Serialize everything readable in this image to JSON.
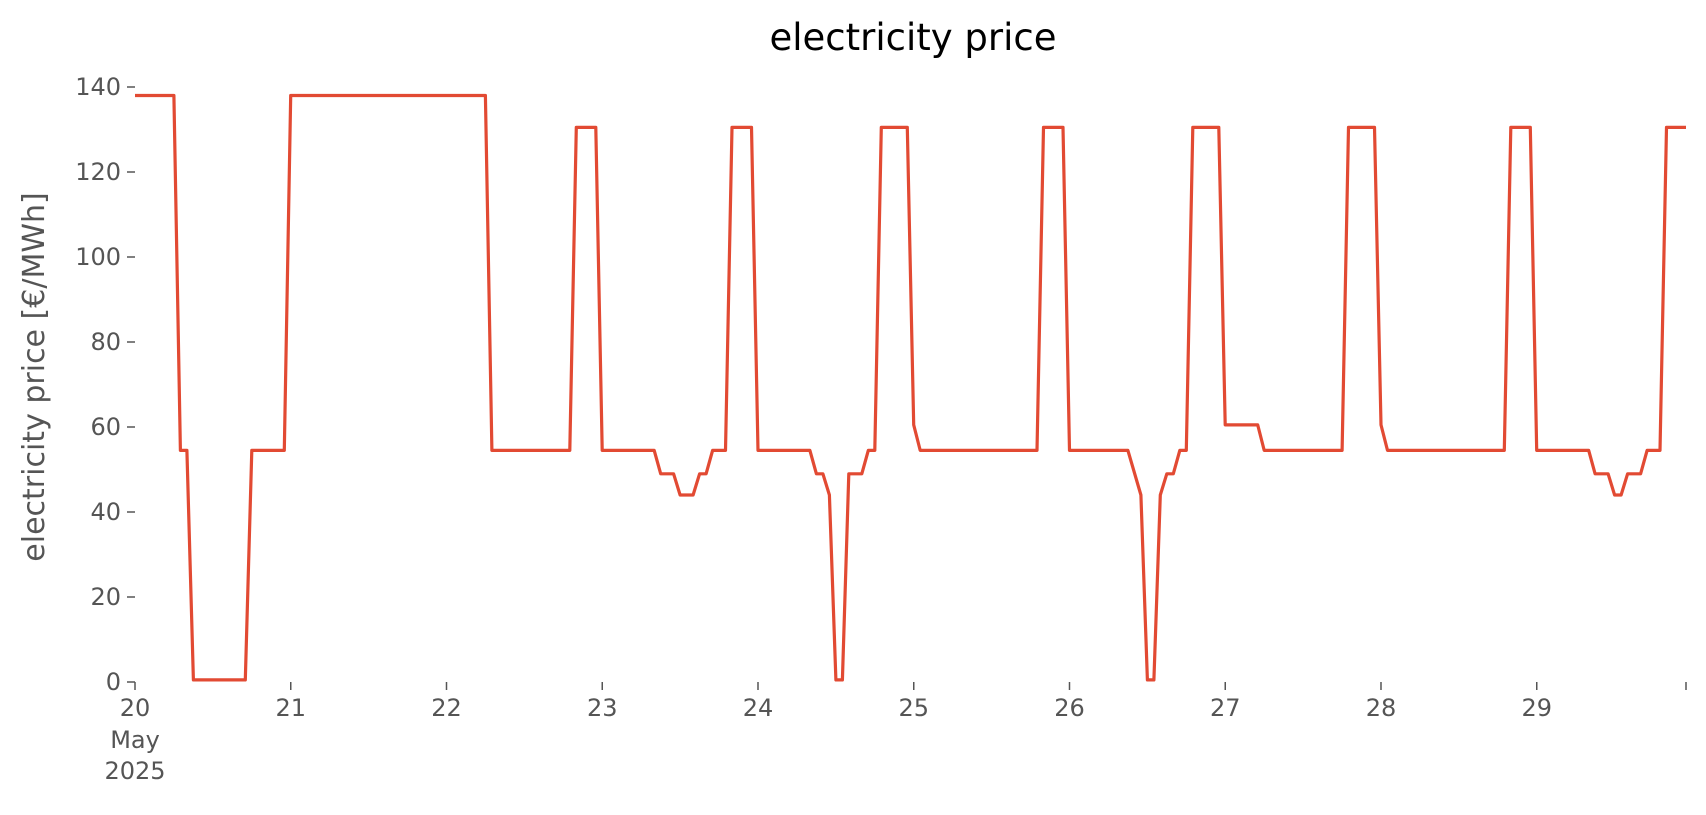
{
  "chart_data": {
    "type": "line",
    "title": "electricity price",
    "ylabel": "electricity price [€/MWh]",
    "x": [
      "2025-05-20T00:00",
      "2025-05-20T06:00",
      "2025-05-20T07:00",
      "2025-05-20T08:00",
      "2025-05-20T09:00",
      "2025-05-20T17:00",
      "2025-05-20T18:00",
      "2025-05-20T23:00",
      "2025-05-21T00:00",
      "2025-05-22T06:00",
      "2025-05-22T07:00",
      "2025-05-22T19:00",
      "2025-05-22T20:00",
      "2025-05-22T23:00",
      "2025-05-23T00:00",
      "2025-05-23T08:00",
      "2025-05-23T09:00",
      "2025-05-23T11:00",
      "2025-05-23T12:00",
      "2025-05-23T14:00",
      "2025-05-23T15:00",
      "2025-05-23T16:00",
      "2025-05-23T17:00",
      "2025-05-23T19:00",
      "2025-05-23T20:00",
      "2025-05-23T23:00",
      "2025-05-24T00:00",
      "2025-05-24T08:00",
      "2025-05-24T09:00",
      "2025-05-24T10:00",
      "2025-05-24T11:00",
      "2025-05-24T12:00",
      "2025-05-24T13:00",
      "2025-05-24T14:00",
      "2025-05-24T16:00",
      "2025-05-24T17:00",
      "2025-05-24T18:00",
      "2025-05-24T19:00",
      "2025-05-24T23:00",
      "2025-05-25T00:00",
      "2025-05-25T01:00",
      "2025-05-25T19:00",
      "2025-05-25T20:00",
      "2025-05-25T23:00",
      "2025-05-26T00:00",
      "2025-05-26T09:00",
      "2025-05-26T11:00",
      "2025-05-26T12:00",
      "2025-05-26T13:00",
      "2025-05-26T14:00",
      "2025-05-26T15:00",
      "2025-05-26T16:00",
      "2025-05-26T17:00",
      "2025-05-26T18:00",
      "2025-05-26T19:00",
      "2025-05-26T23:00",
      "2025-05-27T00:00",
      "2025-05-27T05:00",
      "2025-05-27T06:00",
      "2025-05-27T18:00",
      "2025-05-27T19:00",
      "2025-05-27T23:00",
      "2025-05-28T00:00",
      "2025-05-28T01:00",
      "2025-05-28T19:00",
      "2025-05-28T20:00",
      "2025-05-28T23:00",
      "2025-05-29T00:00",
      "2025-05-29T08:00",
      "2025-05-29T09:00",
      "2025-05-29T11:00",
      "2025-05-29T12:00",
      "2025-05-29T13:00",
      "2025-05-29T14:00",
      "2025-05-29T16:00",
      "2025-05-29T17:00",
      "2025-05-29T19:00",
      "2025-05-29T20:00",
      "2025-05-29T23:00"
    ],
    "series": [
      {
        "name": "electricity price",
        "color": "#e24a33",
        "values": [
          138,
          138,
          54.5,
          54.5,
          0.5,
          0.5,
          54.5,
          54.5,
          138,
          138,
          54.5,
          54.5,
          130.5,
          130.5,
          54.5,
          54.5,
          49,
          49,
          44,
          44,
          49,
          49,
          54.5,
          54.5,
          130.5,
          130.5,
          54.5,
          54.5,
          49,
          49,
          44,
          0.5,
          0.5,
          49,
          49,
          54.5,
          54.5,
          130.5,
          130.5,
          60.5,
          54.5,
          54.5,
          130.5,
          130.5,
          54.5,
          54.5,
          44,
          0.5,
          0.5,
          44,
          49,
          49,
          54.5,
          54.5,
          130.5,
          130.5,
          60.5,
          60.5,
          54.5,
          54.5,
          130.5,
          130.5,
          60.5,
          54.5,
          54.5,
          130.5,
          130.5,
          54.5,
          54.5,
          49,
          49,
          44,
          44,
          49,
          49,
          54.5,
          54.5,
          130.5,
          130.5
        ]
      }
    ],
    "xlim": [
      "2025-05-20T00:00",
      "2025-05-29T23:00"
    ],
    "xticks": [
      {
        "value": "2025-05-20T00:00",
        "label": "20"
      },
      {
        "value": "2025-05-21T00:00",
        "label": "21"
      },
      {
        "value": "2025-05-22T00:00",
        "label": "22"
      },
      {
        "value": "2025-05-23T00:00",
        "label": "23"
      },
      {
        "value": "2025-05-24T00:00",
        "label": "24"
      },
      {
        "value": "2025-05-25T00:00",
        "label": "25"
      },
      {
        "value": "2025-05-26T00:00",
        "label": "26"
      },
      {
        "value": "2025-05-27T00:00",
        "label": "27"
      },
      {
        "value": "2025-05-28T00:00",
        "label": "28"
      },
      {
        "value": "2025-05-29T00:00",
        "label": "29"
      }
    ],
    "x_offset_label": [
      "May",
      "2025"
    ],
    "ylim": [
      0,
      140
    ],
    "yticks": [
      0,
      20,
      40,
      60,
      80,
      100,
      120,
      140
    ],
    "grid": false
  }
}
